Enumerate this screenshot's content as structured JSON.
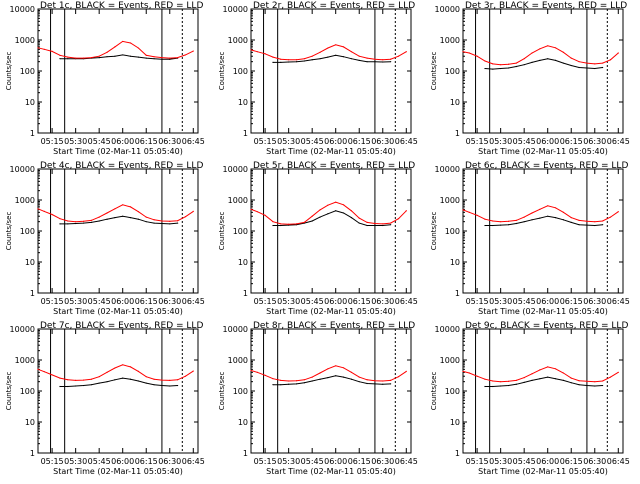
{
  "panel_title_suffix": "BLACK = Events, RED = LLD",
  "xlabel": "Start Time (02-Mar-11 05:05:40)",
  "ylabel": "Counts/sec",
  "x_ticks": [
    "05:15",
    "05:30",
    "05:45",
    "06:00",
    "06:15",
    "06:30",
    "06:45"
  ],
  "y_ticks": [
    "1",
    "10",
    "100",
    "1000",
    "10000"
  ],
  "colors": {
    "events": "#000000",
    "lld": "#ff0000",
    "axes": "#000000"
  },
  "chart_data": [
    {
      "type": "line",
      "title": "Det 1c",
      "x_times": [
        "05:06",
        "05:10",
        "05:15",
        "05:20",
        "05:25",
        "05:30",
        "05:35",
        "05:40",
        "05:45",
        "05:50",
        "05:55",
        "06:00",
        "06:05",
        "06:10",
        "06:15",
        "06:20",
        "06:25",
        "06:30",
        "06:35",
        "06:40",
        "06:45"
      ],
      "ylim": [
        1,
        10000
      ],
      "yscale": "log",
      "series": [
        {
          "name": "BLACK = Events",
          "values": [
            null,
            null,
            null,
            250,
            250,
            250,
            250,
            260,
            270,
            290,
            300,
            330,
            300,
            280,
            260,
            250,
            240,
            240,
            260,
            null,
            null
          ]
        },
        {
          "name": "RED = LLD",
          "values": [
            560,
            500,
            430,
            320,
            280,
            260,
            260,
            270,
            300,
            400,
            600,
            900,
            800,
            550,
            320,
            290,
            270,
            260,
            270,
            330,
            440
          ]
        }
      ]
    },
    {
      "type": "line",
      "title": "Det 2r",
      "x_times": [
        "05:06",
        "05:10",
        "05:15",
        "05:20",
        "05:25",
        "05:30",
        "05:35",
        "05:40",
        "05:45",
        "05:50",
        "05:55",
        "06:00",
        "06:05",
        "06:10",
        "06:15",
        "06:20",
        "06:25",
        "06:30",
        "06:35",
        "06:40",
        "06:45"
      ],
      "ylim": [
        1,
        10000
      ],
      "yscale": "log",
      "series": [
        {
          "name": "BLACK = Events",
          "values": [
            null,
            null,
            null,
            190,
            190,
            195,
            200,
            210,
            230,
            250,
            280,
            320,
            290,
            250,
            220,
            200,
            200,
            195,
            200,
            null,
            null
          ]
        },
        {
          "name": "RED = LLD",
          "values": [
            480,
            420,
            360,
            280,
            240,
            230,
            230,
            250,
            300,
            400,
            550,
            700,
            600,
            420,
            300,
            260,
            240,
            230,
            240,
            300,
            420
          ]
        }
      ]
    },
    {
      "type": "line",
      "title": "Det 3r",
      "x_times": [
        "05:06",
        "05:10",
        "05:15",
        "05:20",
        "05:25",
        "05:30",
        "05:35",
        "05:40",
        "05:45",
        "05:50",
        "05:55",
        "06:00",
        "06:05",
        "06:10",
        "06:15",
        "06:20",
        "06:25",
        "06:30",
        "06:35",
        "06:40",
        "06:45"
      ],
      "ylim": [
        1,
        10000
      ],
      "yscale": "log",
      "series": [
        {
          "name": "BLACK = Events",
          "values": [
            null,
            null,
            null,
            120,
            115,
            120,
            125,
            140,
            160,
            190,
            220,
            250,
            220,
            180,
            150,
            130,
            125,
            120,
            130,
            null,
            null
          ]
        },
        {
          "name": "RED = LLD",
          "values": [
            420,
            380,
            300,
            210,
            170,
            160,
            165,
            180,
            250,
            380,
            520,
            650,
            560,
            400,
            260,
            200,
            180,
            170,
            180,
            230,
            380
          ]
        }
      ]
    },
    {
      "type": "line",
      "title": "Det 4c",
      "x_times": [
        "05:06",
        "05:10",
        "05:15",
        "05:20",
        "05:25",
        "05:30",
        "05:35",
        "05:40",
        "05:45",
        "05:50",
        "05:55",
        "06:00",
        "06:05",
        "06:10",
        "06:15",
        "06:20",
        "06:25",
        "06:30",
        "06:35",
        "06:40",
        "06:45"
      ],
      "ylim": [
        1,
        10000
      ],
      "yscale": "log",
      "series": [
        {
          "name": "BLACK = Events",
          "values": [
            null,
            null,
            null,
            170,
            170,
            175,
            180,
            190,
            210,
            240,
            270,
            300,
            270,
            240,
            200,
            180,
            175,
            170,
            180,
            null,
            null
          ]
        },
        {
          "name": "RED = LLD",
          "values": [
            520,
            430,
            340,
            250,
            210,
            200,
            205,
            220,
            280,
            380,
            520,
            700,
            600,
            420,
            280,
            230,
            210,
            205,
            215,
            290,
            430
          ]
        }
      ]
    },
    {
      "type": "line",
      "title": "Det 5r",
      "x_times": [
        "05:06",
        "05:10",
        "05:15",
        "05:20",
        "05:25",
        "05:30",
        "05:35",
        "05:40",
        "05:45",
        "05:50",
        "05:55",
        "06:00",
        "06:05",
        "06:10",
        "06:15",
        "06:20",
        "06:25",
        "06:30",
        "06:35",
        "06:40",
        "06:45"
      ],
      "ylim": [
        1,
        10000
      ],
      "yscale": "log",
      "series": [
        {
          "name": "BLACK = Events",
          "values": [
            null,
            null,
            null,
            150,
            150,
            155,
            160,
            180,
            210,
            280,
            360,
            450,
            380,
            270,
            180,
            150,
            150,
            150,
            160,
            null,
            null
          ]
        },
        {
          "name": "RED = LLD",
          "values": [
            500,
            420,
            320,
            200,
            170,
            165,
            170,
            190,
            300,
            480,
            680,
            850,
            700,
            450,
            260,
            190,
            175,
            170,
            180,
            250,
            450
          ]
        }
      ]
    },
    {
      "type": "line",
      "title": "Det 6c",
      "x_times": [
        "05:06",
        "05:10",
        "05:15",
        "05:20",
        "05:25",
        "05:30",
        "05:35",
        "05:40",
        "05:45",
        "05:50",
        "05:55",
        "06:00",
        "06:05",
        "06:10",
        "06:15",
        "06:20",
        "06:25",
        "06:30",
        "06:35",
        "06:40",
        "06:45"
      ],
      "ylim": [
        1,
        10000
      ],
      "yscale": "log",
      "series": [
        {
          "name": "BLACK = Events",
          "values": [
            null,
            null,
            null,
            150,
            150,
            155,
            160,
            175,
            200,
            230,
            260,
            300,
            270,
            230,
            190,
            160,
            155,
            150,
            160,
            null,
            null
          ]
        },
        {
          "name": "RED = LLD",
          "values": [
            480,
            400,
            320,
            240,
            210,
            200,
            205,
            220,
            280,
            380,
            500,
            650,
            560,
            400,
            270,
            220,
            205,
            200,
            210,
            280,
            420
          ]
        }
      ]
    },
    {
      "type": "line",
      "title": "Det 7c",
      "x_times": [
        "05:06",
        "05:10",
        "05:15",
        "05:20",
        "05:25",
        "05:30",
        "05:35",
        "05:40",
        "05:45",
        "05:50",
        "05:55",
        "06:00",
        "06:05",
        "06:10",
        "06:15",
        "06:20",
        "06:25",
        "06:30",
        "06:35",
        "06:40",
        "06:45"
      ],
      "ylim": [
        1,
        10000
      ],
      "yscale": "log",
      "series": [
        {
          "name": "BLACK = Events",
          "values": [
            null,
            null,
            null,
            140,
            140,
            145,
            150,
            160,
            180,
            200,
            230,
            260,
            240,
            210,
            180,
            160,
            150,
            145,
            150,
            null,
            null
          ]
        },
        {
          "name": "RED = LLD",
          "values": [
            500,
            420,
            330,
            260,
            230,
            220,
            225,
            240,
            290,
            400,
            550,
            700,
            600,
            430,
            290,
            240,
            225,
            220,
            230,
            300,
            440
          ]
        }
      ]
    },
    {
      "type": "line",
      "title": "Det 8r",
      "x_times": [
        "05:06",
        "05:10",
        "05:15",
        "05:20",
        "05:25",
        "05:30",
        "05:35",
        "05:40",
        "05:45",
        "05:50",
        "05:55",
        "06:00",
        "06:05",
        "06:10",
        "06:15",
        "06:20",
        "06:25",
        "06:30",
        "06:35",
        "06:40",
        "06:45"
      ],
      "ylim": [
        1,
        10000
      ],
      "yscale": "log",
      "series": [
        {
          "name": "BLACK = Events",
          "values": [
            null,
            null,
            null,
            160,
            160,
            165,
            170,
            185,
            210,
            240,
            270,
            310,
            280,
            240,
            200,
            175,
            170,
            165,
            170,
            null,
            null
          ]
        },
        {
          "name": "RED = LLD",
          "values": [
            460,
            400,
            320,
            250,
            220,
            210,
            215,
            230,
            280,
            380,
            520,
            650,
            560,
            400,
            280,
            230,
            215,
            210,
            220,
            290,
            430
          ]
        }
      ]
    },
    {
      "type": "line",
      "title": "Det 9c",
      "x_times": [
        "05:06",
        "05:10",
        "05:15",
        "05:20",
        "05:25",
        "05:30",
        "05:35",
        "05:40",
        "05:45",
        "05:50",
        "05:55",
        "06:00",
        "06:05",
        "06:10",
        "06:15",
        "06:20",
        "06:25",
        "06:30",
        "06:35",
        "06:40",
        "06:45"
      ],
      "ylim": [
        1,
        10000
      ],
      "yscale": "log",
      "series": [
        {
          "name": "BLACK = Events",
          "values": [
            null,
            null,
            null,
            140,
            140,
            145,
            150,
            165,
            190,
            220,
            250,
            280,
            250,
            220,
            185,
            160,
            150,
            145,
            150,
            null,
            null
          ]
        },
        {
          "name": "RED = LLD",
          "values": [
            430,
            380,
            300,
            240,
            210,
            200,
            205,
            220,
            270,
            360,
            480,
            600,
            520,
            380,
            260,
            215,
            205,
            200,
            210,
            280,
            400
          ]
        }
      ]
    }
  ]
}
